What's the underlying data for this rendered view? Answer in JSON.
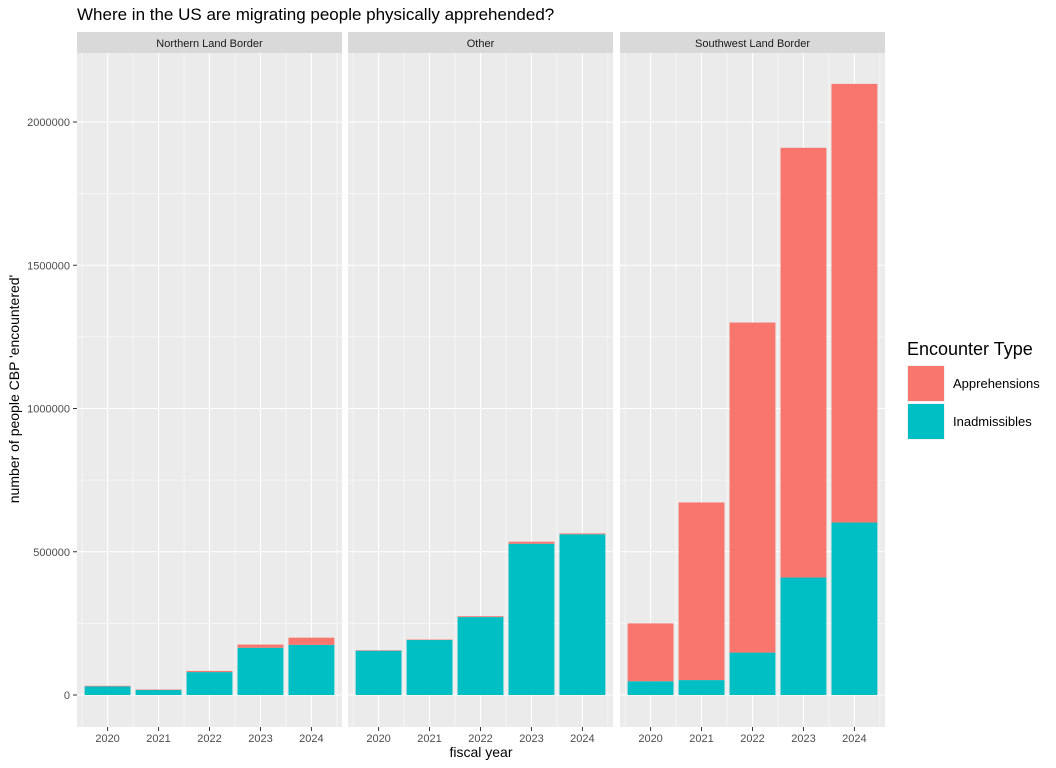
{
  "chart_data": {
    "type": "bar",
    "stacked": true,
    "title": "Where in the US are migrating people physically apprehended?",
    "xlabel": "fiscal year",
    "ylabel": "number of people CBP 'encountered'",
    "ylim": [
      0,
      2200000
    ],
    "yticks": [
      0,
      500000,
      1000000,
      1500000,
      2000000
    ],
    "ytick_labels": [
      "0",
      "500000",
      "1000000",
      "1500000",
      "2000000"
    ],
    "categories": [
      "2020",
      "2021",
      "2022",
      "2023",
      "2024"
    ],
    "legend": {
      "title": "Encounter Type",
      "position": "right",
      "entries": [
        "Apprehensions",
        "Inadmissibles"
      ]
    },
    "colors": {
      "Apprehensions": "#F8766D",
      "Inadmissibles": "#00BFC4"
    },
    "grid": true,
    "facets": [
      {
        "name": "Northern Land Border",
        "series": [
          {
            "name": "Inadmissibles",
            "values": [
              30000,
              18000,
              80000,
              165000,
              175000
            ]
          },
          {
            "name": "Apprehensions",
            "values": [
              2000,
              1000,
              4000,
              11000,
              25000
            ]
          }
        ]
      },
      {
        "name": "Other",
        "series": [
          {
            "name": "Inadmissibles",
            "values": [
              155000,
              192000,
              272000,
              528000,
              561000
            ]
          },
          {
            "name": "Apprehensions",
            "values": [
              1000,
              1500,
              3000,
              7000,
              3000
            ]
          }
        ]
      },
      {
        "name": "Southwest Land Border",
        "series": [
          {
            "name": "Inadmissibles",
            "values": [
              48000,
              52000,
              148000,
              410000,
              602000
            ]
          },
          {
            "name": "Apprehensions",
            "values": [
              202000,
              620000,
              1152000,
              1500000,
              1531000
            ]
          }
        ]
      }
    ]
  }
}
